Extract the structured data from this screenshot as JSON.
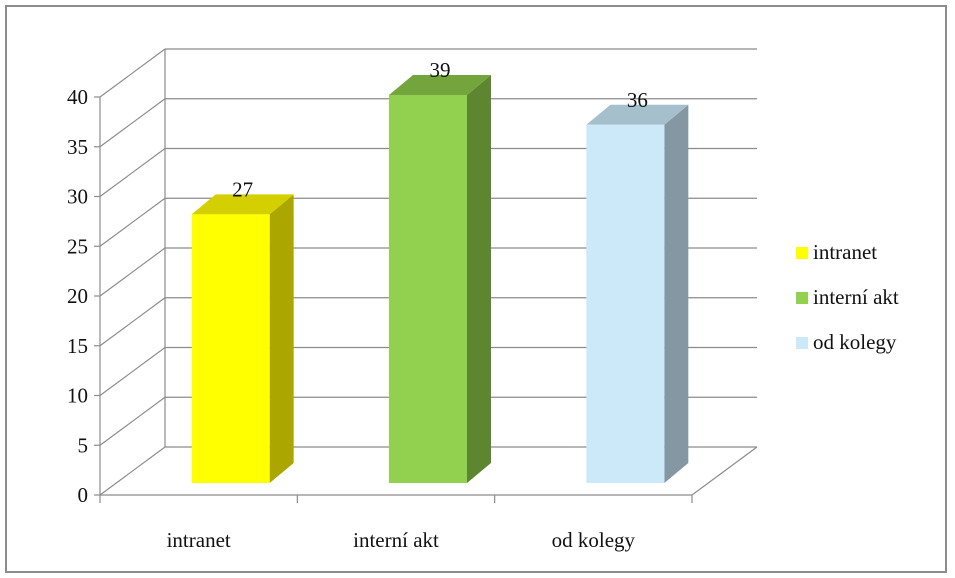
{
  "chart_data": {
    "type": "bar",
    "categories": [
      "intranet",
      "interní akt",
      "od kolegy"
    ],
    "values": [
      27,
      39,
      36
    ],
    "ylim": [
      0,
      40
    ],
    "yticks": [
      0,
      5,
      10,
      15,
      20,
      25,
      30,
      35,
      40
    ],
    "grid": true,
    "legend_position": "right",
    "legend": [
      "intranet",
      "interní akt",
      "od kolegy"
    ],
    "colors": [
      {
        "front": "#ffff00",
        "side": "#aba600",
        "top": "#d4cf00"
      },
      {
        "front": "#92d050",
        "side": "#5e8530",
        "top": "#74a53c"
      },
      {
        "front": "#cce9f9",
        "side": "#8497a3",
        "top": "#a6bfcd"
      }
    ]
  }
}
